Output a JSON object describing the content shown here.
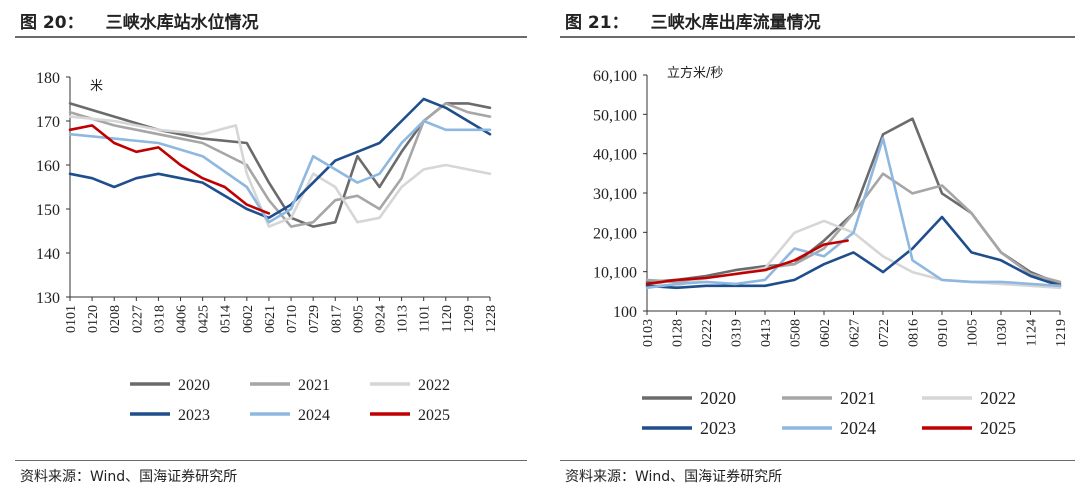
{
  "chart_data": [
    {
      "type": "line",
      "figure_label": "图 20：",
      "title": "三峡水库站水位情况",
      "unit_label": "米",
      "ylim": [
        130,
        180
      ],
      "yticks": [
        130,
        140,
        150,
        160,
        170,
        180
      ],
      "x_ticks": [
        "0101",
        "0120",
        "0208",
        "0227",
        "0318",
        "0406",
        "0425",
        "0514",
        "0602",
        "0621",
        "0710",
        "0729",
        "0817",
        "0905",
        "0924",
        "1013",
        "1101",
        "1120",
        "1209",
        "1228"
      ],
      "source": "资料来源：Wind、国海证券研究所",
      "series": [
        {
          "name": "2020",
          "color": "#6b6b6b",
          "x": [
            0,
            2,
            4,
            6,
            8,
            9,
            10,
            11,
            12,
            13,
            14,
            15,
            16,
            17,
            18,
            19
          ],
          "y": [
            174,
            171,
            168,
            166,
            165,
            156,
            148,
            146,
            147,
            162,
            155,
            163,
            170,
            174,
            174,
            173
          ]
        },
        {
          "name": "2021",
          "color": "#a6a6a6",
          "x": [
            0,
            2,
            4,
            6,
            8,
            9,
            10,
            11,
            12,
            13,
            14,
            15,
            16,
            17,
            18,
            19
          ],
          "y": [
            172,
            169,
            167,
            165,
            160,
            152,
            146,
            147,
            152,
            153,
            150,
            157,
            170,
            174,
            172,
            171
          ]
        },
        {
          "name": "2022",
          "color": "#d6d6d6",
          "x": [
            0,
            2,
            4,
            6,
            7.5,
            8,
            9,
            10,
            11,
            12,
            13,
            14,
            15,
            16,
            17,
            18,
            19
          ],
          "y": [
            171,
            170,
            168,
            167,
            169,
            158,
            146,
            148,
            158,
            155,
            147,
            148,
            155,
            159,
            160,
            159,
            158
          ]
        },
        {
          "name": "2023",
          "color": "#1f4e8c",
          "x": [
            0,
            1,
            2,
            3,
            4,
            5,
            6,
            7,
            8,
            9,
            10,
            11,
            12,
            13,
            14,
            15,
            16,
            17,
            18,
            19
          ],
          "y": [
            158,
            157,
            155,
            157,
            158,
            157,
            156,
            153,
            150,
            148,
            151,
            156,
            161,
            163,
            165,
            170,
            175,
            173,
            170,
            167
          ]
        },
        {
          "name": "2024",
          "color": "#8fb8e0",
          "x": [
            0,
            2,
            4,
            6,
            8,
            9,
            10,
            11,
            12,
            13,
            14,
            15,
            16,
            17,
            18,
            19
          ],
          "y": [
            167,
            166,
            165,
            162,
            155,
            147,
            150,
            162,
            159,
            156,
            158,
            165,
            170,
            168,
            168,
            168
          ]
        },
        {
          "name": "2025",
          "color": "#c00000",
          "x": [
            0,
            1,
            2,
            3,
            4,
            5,
            6,
            7,
            8,
            9
          ],
          "y": [
            168,
            169,
            165,
            163,
            164,
            160,
            157,
            155,
            151,
            149
          ]
        }
      ]
    },
    {
      "type": "line",
      "figure_label": "图 21：",
      "title": "三峡水库出库流量情况",
      "unit_label": "立方米/秒",
      "ylim": [
        100,
        60100
      ],
      "yticks": [
        100,
        10100,
        20100,
        30100,
        40100,
        50100,
        60100
      ],
      "ytick_labels": [
        "100",
        "10,100",
        "20,100",
        "30,100",
        "40,100",
        "50,100",
        "60,100"
      ],
      "x_ticks": [
        "0103",
        "0128",
        "0222",
        "0319",
        "0413",
        "0508",
        "0602",
        "0627",
        "0722",
        "0816",
        "0910",
        "1005",
        "1030",
        "1124",
        "1219"
      ],
      "source": "资料来源：Wind、国海证券研究所",
      "series": [
        {
          "name": "2020",
          "color": "#6b6b6b",
          "x": [
            0,
            1,
            2,
            3,
            4,
            5,
            6,
            7,
            8,
            9,
            10,
            11,
            12,
            13,
            14
          ],
          "y": [
            7500,
            8000,
            9000,
            10500,
            11500,
            12000,
            18000,
            25000,
            45000,
            49000,
            30000,
            25000,
            15000,
            10000,
            7000
          ]
        },
        {
          "name": "2021",
          "color": "#a6a6a6",
          "x": [
            0,
            1,
            2,
            3,
            4,
            5,
            6,
            7,
            8,
            9,
            10,
            11,
            12,
            13,
            14
          ],
          "y": [
            8000,
            7500,
            8500,
            9500,
            11000,
            12000,
            16000,
            25000,
            35000,
            30000,
            32000,
            25000,
            15000,
            9500,
            7500
          ]
        },
        {
          "name": "2022",
          "color": "#d6d6d6",
          "x": [
            0,
            1,
            2,
            3,
            4,
            5,
            6,
            7,
            8,
            9,
            10,
            11,
            12,
            13,
            14
          ],
          "y": [
            7000,
            6500,
            8500,
            9500,
            11000,
            20000,
            23000,
            20000,
            14000,
            10000,
            8000,
            7500,
            7000,
            6500,
            6000
          ]
        },
        {
          "name": "2023",
          "color": "#1f4e8c",
          "x": [
            0,
            1,
            2,
            3,
            4,
            5,
            6,
            7,
            8,
            9,
            10,
            11,
            12,
            13,
            14
          ],
          "y": [
            6500,
            6000,
            6500,
            6500,
            6500,
            8000,
            12000,
            15000,
            10000,
            16000,
            24000,
            15000,
            13000,
            9000,
            6500
          ]
        },
        {
          "name": "2024",
          "color": "#8fb8e0",
          "x": [
            0,
            1,
            2,
            3,
            4,
            5,
            6,
            7,
            8,
            9,
            10,
            11,
            12,
            13,
            14
          ],
          "y": [
            6000,
            7000,
            7500,
            7000,
            8000,
            16000,
            14000,
            20000,
            44000,
            13000,
            8000,
            7500,
            7500,
            7000,
            6500
          ]
        },
        {
          "name": "2025",
          "color": "#c00000",
          "x": [
            0,
            1,
            2,
            3,
            4,
            5,
            6,
            6.8
          ],
          "y": [
            7000,
            8000,
            8500,
            9500,
            10500,
            13000,
            17000,
            18000
          ]
        }
      ]
    }
  ]
}
